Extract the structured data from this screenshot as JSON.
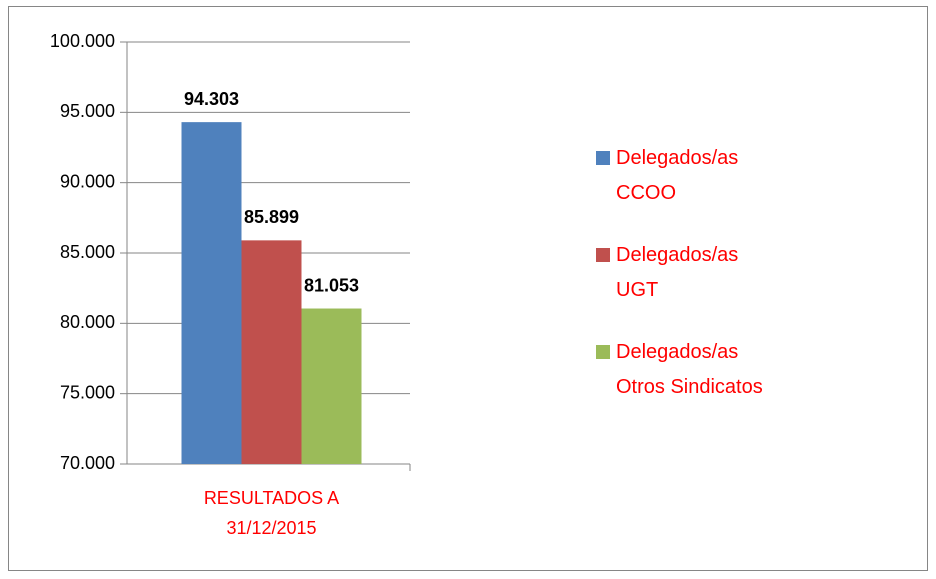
{
  "chart_data": {
    "type": "bar",
    "categories": [
      "RESULTADOS A 31/12/2015"
    ],
    "series": [
      {
        "name": "Delegados/as CCOO",
        "color": "#4f81bd",
        "values": [
          94303
        ],
        "value_labels": [
          "94.303"
        ]
      },
      {
        "name": "Delegados/as UGT",
        "color": "#c0504d",
        "values": [
          85899
        ],
        "value_labels": [
          "85.899"
        ]
      },
      {
        "name": "Delegados/as Otros Sindicatos",
        "color": "#9bbb59",
        "values": [
          81053
        ],
        "value_labels": [
          "81.053"
        ]
      }
    ],
    "ylim": [
      70000,
      100000
    ],
    "yticks": [
      {
        "value": 70000,
        "label": "70.000"
      },
      {
        "value": 75000,
        "label": "75.000"
      },
      {
        "value": 80000,
        "label": "80.000"
      },
      {
        "value": 85000,
        "label": "85.000"
      },
      {
        "value": 90000,
        "label": "90.000"
      },
      {
        "value": 95000,
        "label": "95.000"
      },
      {
        "value": 100000,
        "label": "100.000"
      }
    ],
    "grid": true,
    "legend": "right"
  }
}
